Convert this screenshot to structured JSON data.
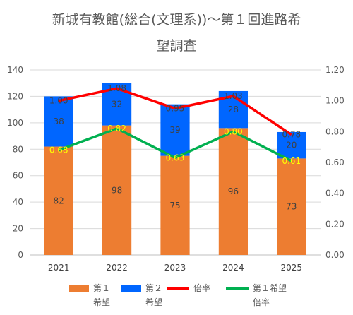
{
  "chart_data": {
    "type": "bar",
    "title_lines": [
      "新城有教館(総合(文理系))～第１回進路希",
      "望調査"
    ],
    "categories": [
      "2021",
      "2022",
      "2023",
      "2024",
      "2025"
    ],
    "series": [
      {
        "name": "第１希望",
        "kind": "bar",
        "axis": "left",
        "color": "#ED7D31",
        "values": [
          82,
          98,
          75,
          96,
          73
        ],
        "labels": [
          "82",
          "98",
          "75",
          "96",
          "73"
        ],
        "label_color": "#404040"
      },
      {
        "name": "第２希望",
        "kind": "bar",
        "axis": "left",
        "color": "#0066FF",
        "values": [
          38,
          32,
          39,
          28,
          20
        ],
        "labels": [
          "38",
          "32",
          "39",
          "28",
          "20"
        ],
        "label_color": "#404040"
      },
      {
        "name": "倍率",
        "kind": "line",
        "axis": "right",
        "color": "#FF0000",
        "values": [
          1.0,
          1.08,
          0.95,
          1.03,
          0.78
        ],
        "labels": [
          "1.00",
          "1.08",
          "0.95",
          "1.03",
          "0.78"
        ],
        "label_color": "#404040"
      },
      {
        "name": "第１希望倍率",
        "kind": "line",
        "axis": "right",
        "color": "#00B050",
        "values": [
          0.68,
          0.82,
          0.63,
          0.8,
          0.61
        ],
        "labels": [
          "0.68",
          "0.82",
          "0.63",
          "0.80",
          "0.61"
        ],
        "label_color": "#FFFF00"
      }
    ],
    "y_left": {
      "min": 0,
      "max": 140,
      "step": 20,
      "ticks": [
        "0",
        "20",
        "40",
        "60",
        "80",
        "100",
        "120",
        "140"
      ]
    },
    "y_right": {
      "min": 0,
      "max": 1.2,
      "step": 0.2,
      "ticks": [
        "0.00",
        "0.20",
        "0.40",
        "0.60",
        "0.80",
        "1.00",
        "1.20"
      ]
    },
    "stacked": true,
    "grid": true,
    "legend_position": "bottom",
    "legend": [
      {
        "lines": [
          "第１",
          "希望"
        ],
        "type": "box",
        "color": "#ED7D31"
      },
      {
        "lines": [
          "第２",
          "希望"
        ],
        "type": "box",
        "color": "#0066FF"
      },
      {
        "lines": [
          "倍率",
          ""
        ],
        "type": "line",
        "color": "#FF0000"
      },
      {
        "lines": [
          "第１希望",
          "倍率"
        ],
        "type": "line",
        "color": "#00B050"
      }
    ]
  }
}
